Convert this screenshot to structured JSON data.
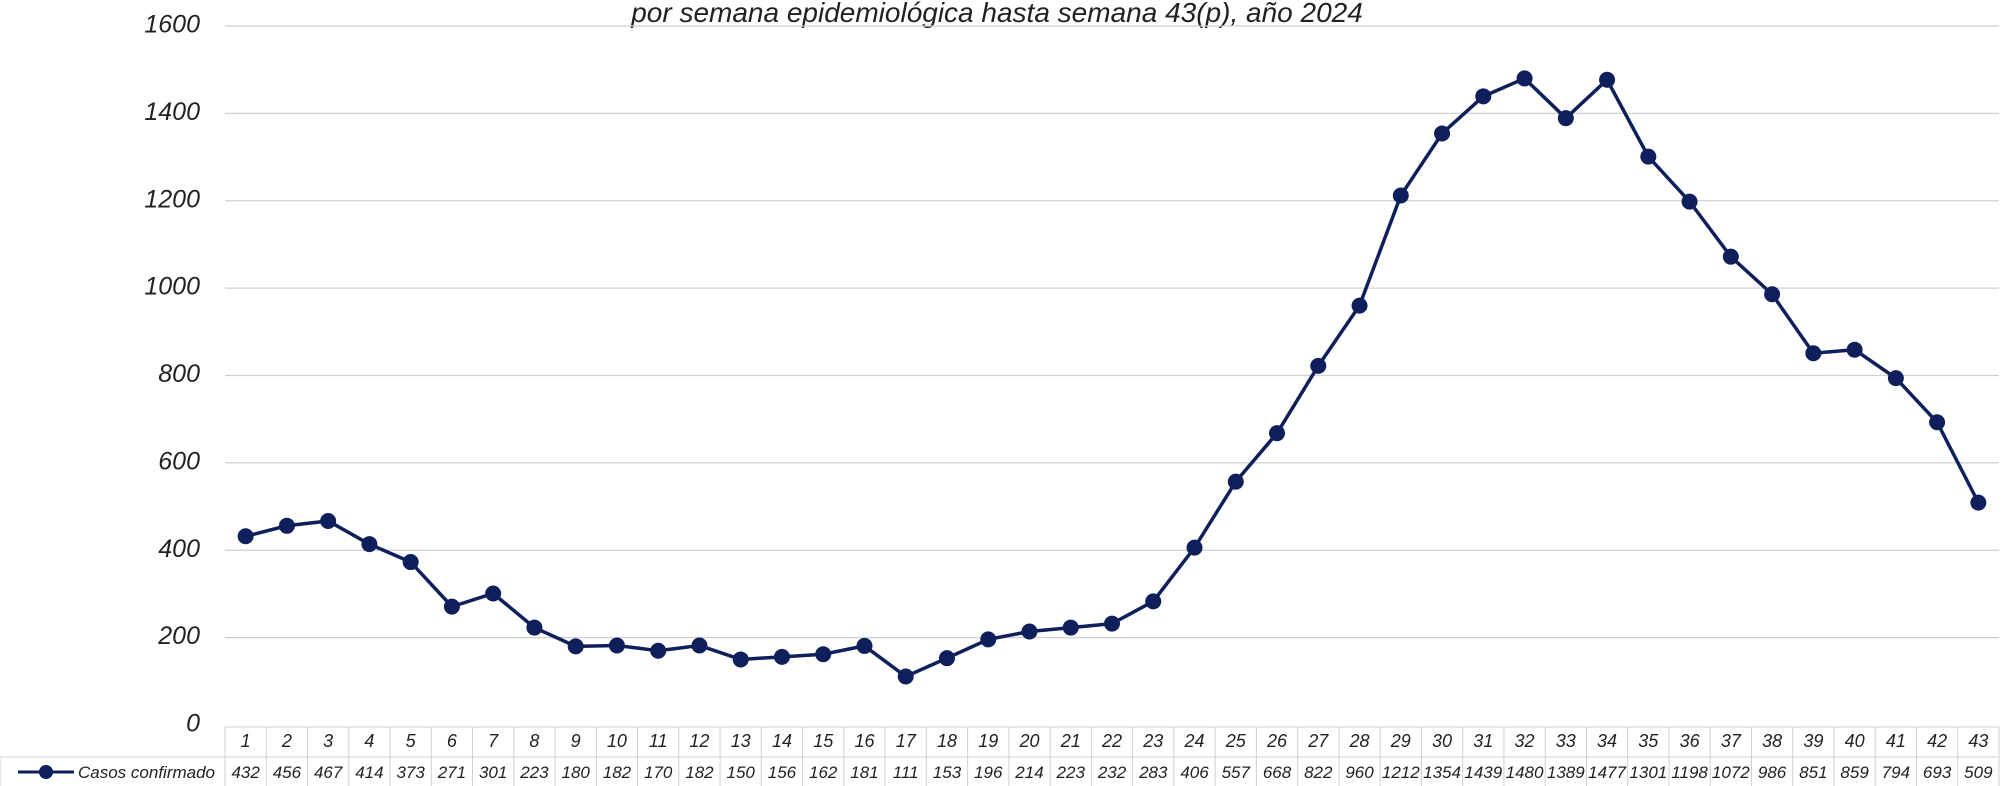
{
  "chart_data": {
    "type": "line",
    "title": "por semana epidemiológica hasta semana 43(p), año 2024",
    "categories": [
      "1",
      "2",
      "3",
      "4",
      "5",
      "6",
      "7",
      "8",
      "9",
      "10",
      "11",
      "12",
      "13",
      "14",
      "15",
      "16",
      "17",
      "18",
      "19",
      "20",
      "21",
      "22",
      "23",
      "24",
      "25",
      "26",
      "27",
      "28",
      "29",
      "30",
      "31",
      "32",
      "33",
      "34",
      "35",
      "36",
      "37",
      "38",
      "39",
      "40",
      "41",
      "42",
      "43"
    ],
    "series": [
      {
        "name": "Casos confirmado",
        "color": "#0e1f5b",
        "values": [
          432,
          456,
          467,
          414,
          373,
          271,
          301,
          223,
          180,
          182,
          170,
          182,
          150,
          156,
          162,
          181,
          111,
          153,
          196,
          214,
          223,
          232,
          283,
          406,
          557,
          668,
          822,
          960,
          1212,
          1354,
          1439,
          1480,
          1389,
          1477,
          1301,
          1198,
          1072,
          986,
          851,
          859,
          794,
          693,
          509
        ]
      }
    ],
    "ylim": [
      0,
      1600
    ],
    "yticks": [
      0,
      200,
      400,
      600,
      800,
      1000,
      1200,
      1400,
      1600
    ],
    "grid": true
  }
}
